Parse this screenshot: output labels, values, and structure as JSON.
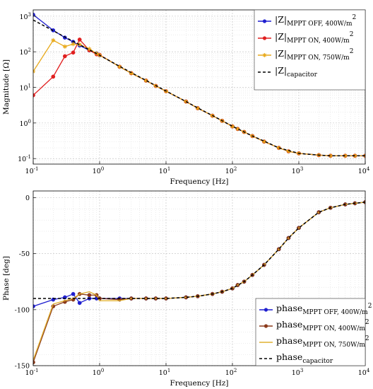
{
  "chart_data": [
    {
      "type": "line",
      "x_scale": "log",
      "y_scale": "log",
      "xlim": [
        0.1,
        10000
      ],
      "ylim": [
        0.07,
        1500
      ],
      "xlabel": "Frequency [Hz]",
      "ylabel": "Magnitude [Ω]",
      "grid": true,
      "legend_position": "top-right",
      "x_ticks": [
        0.1,
        1,
        10,
        100,
        1000,
        10000
      ],
      "x_tick_labels": [
        [
          "10",
          "-1"
        ],
        [
          "10",
          "0"
        ],
        [
          "10",
          "1"
        ],
        [
          "10",
          "2"
        ],
        [
          "10",
          "3"
        ],
        [
          "10",
          "4"
        ]
      ],
      "y_ticks": [
        0.1,
        1,
        10,
        100,
        1000
      ],
      "y_tick_labels": [
        [
          "10",
          "-1"
        ],
        [
          "10",
          "0"
        ],
        [
          "10",
          "1"
        ],
        [
          "10",
          "2"
        ],
        [
          "10",
          "3"
        ]
      ],
      "series": [
        {
          "name": "|Z|",
          "sub": "MPPT OFF, 400W/m",
          "sup": "2",
          "color": "#1f1fcf",
          "marker": "circle",
          "x": [
            0.1,
            0.2,
            0.3,
            0.4,
            0.5,
            0.7,
            0.9,
            1,
            2,
            3,
            5,
            7,
            10,
            20,
            30,
            50,
            70,
            100,
            120,
            150,
            200,
            300,
            500,
            700,
            1000,
            2000,
            3000,
            5000,
            7000,
            10000
          ],
          "y": [
            1100,
            400,
            250,
            190,
            150,
            110,
            90,
            80,
            38,
            25,
            15.5,
            11,
            7.8,
            4,
            2.6,
            1.6,
            1.15,
            0.8,
            0.68,
            0.56,
            0.43,
            0.3,
            0.2,
            0.16,
            0.14,
            0.125,
            0.12,
            0.12,
            0.12,
            0.12
          ]
        },
        {
          "name": "|Z|",
          "sub": "MPPT ON, 400W/m",
          "sup": "2",
          "color": "#e01f1f",
          "marker": "circle",
          "x": [
            0.1,
            0.2,
            0.3,
            0.4,
            0.5,
            0.7,
            0.9,
            1,
            2,
            3,
            5,
            7,
            10,
            20,
            30,
            50,
            70,
            100,
            120,
            150,
            200,
            300,
            500,
            700,
            1000,
            2000,
            3000,
            5000,
            7000,
            10000
          ],
          "y": [
            6,
            20,
            75,
            95,
            220,
            110,
            85,
            82,
            38,
            25,
            15.5,
            11,
            7.8,
            4,
            2.6,
            1.6,
            1.15,
            0.8,
            0.68,
            0.56,
            0.43,
            0.3,
            0.2,
            0.16,
            0.14,
            0.125,
            0.12,
            0.12,
            0.12,
            0.12
          ]
        },
        {
          "name": "|Z|",
          "sub": "MPPT ON, 750W/m",
          "sup": "2",
          "color": "#e8a91a",
          "marker": "star",
          "x": [
            0.1,
            0.2,
            0.3,
            0.4,
            0.5,
            0.7,
            0.9,
            1,
            2,
            3,
            5,
            7,
            10,
            20,
            30,
            50,
            70,
            100,
            120,
            150,
            200,
            300,
            500,
            700,
            1000,
            2000,
            3000,
            5000,
            7000,
            10000
          ],
          "y": [
            28,
            210,
            140,
            165,
            160,
            120,
            90,
            80,
            38,
            25,
            15.5,
            11,
            7.8,
            4,
            2.6,
            1.6,
            1.15,
            0.8,
            0.68,
            0.56,
            0.43,
            0.3,
            0.2,
            0.16,
            0.14,
            0.125,
            0.12,
            0.12,
            0.12,
            0.12
          ]
        },
        {
          "name": "|Z|",
          "sub": "capacitor",
          "sup": "",
          "color": "#000000",
          "marker": "none",
          "dash": true,
          "x": [
            0.1,
            0.2,
            0.3,
            0.5,
            1,
            2,
            3,
            5,
            10,
            20,
            30,
            50,
            100,
            200,
            300,
            500,
            1000,
            2000,
            3000,
            5000,
            10000
          ],
          "y": [
            780,
            390,
            260,
            158,
            80,
            39,
            26,
            15.7,
            7.9,
            4,
            2.65,
            1.62,
            0.81,
            0.43,
            0.31,
            0.2,
            0.14,
            0.125,
            0.12,
            0.12,
            0.12
          ]
        }
      ]
    },
    {
      "type": "line",
      "x_scale": "log",
      "y_scale": "linear",
      "xlim": [
        0.1,
        10000
      ],
      "ylim": [
        -150,
        6
      ],
      "xlabel": "Frequency [Hz]",
      "ylabel": "Phase [deg]",
      "grid": true,
      "legend_position": "bottom-right",
      "x_ticks": [
        0.1,
        1,
        10,
        100,
        1000,
        10000
      ],
      "x_tick_labels": [
        [
          "10",
          "-1"
        ],
        [
          "10",
          "0"
        ],
        [
          "10",
          "1"
        ],
        [
          "10",
          "2"
        ],
        [
          "10",
          "3"
        ],
        [
          "10",
          "4"
        ]
      ],
      "y_ticks": [
        -150,
        -100,
        -50,
        0
      ],
      "y_tick_labels": [
        "-150",
        "-100",
        "-50",
        "0"
      ],
      "series": [
        {
          "name": "phase",
          "sub": "MPPT OFF, 400W/m",
          "sup": "2",
          "color": "#1f1fcf",
          "marker": "circle",
          "x": [
            0.1,
            0.2,
            0.3,
            0.4,
            0.5,
            0.7,
            0.9,
            1,
            2,
            3,
            5,
            7,
            10,
            20,
            30,
            50,
            70,
            100,
            120,
            150,
            200,
            300,
            500,
            700,
            1000,
            2000,
            3000,
            5000,
            7000,
            10000
          ],
          "y": [
            -97,
            -91,
            -89,
            -86,
            -94,
            -90,
            -90,
            -90,
            -90,
            -90,
            -90,
            -90,
            -90,
            -89,
            -88,
            -86,
            -84,
            -81,
            -78,
            -75,
            -69,
            -60,
            -46,
            -36,
            -27,
            -13,
            -9,
            -6,
            -5,
            -4
          ]
        },
        {
          "name": "phase",
          "sub": "MPPT ON, 400W/m",
          "sup": "2",
          "color": "#8b3a1a",
          "marker": "circle",
          "x": [
            0.1,
            0.2,
            0.3,
            0.4,
            0.5,
            0.7,
            0.9,
            1,
            2,
            3,
            5,
            7,
            10,
            20,
            30,
            50,
            70,
            100,
            120,
            150,
            200,
            300,
            500,
            700,
            1000,
            2000,
            3000,
            5000,
            7000,
            10000
          ],
          "y": [
            -147,
            -97,
            -93,
            -91,
            -86,
            -87,
            -87,
            -90,
            -91,
            -90,
            -90,
            -90,
            -90,
            -89,
            -88,
            -86,
            -84,
            -81,
            -78,
            -75,
            -69,
            -60,
            -46,
            -36,
            -27,
            -13,
            -9,
            -6,
            -5,
            -4
          ]
        },
        {
          "name": "phase",
          "sub": "MPPT ON, 750W/m",
          "sup": "2",
          "color": "#e0b030",
          "marker": "none",
          "x": [
            0.1,
            0.2,
            0.3,
            0.4,
            0.5,
            0.7,
            0.9,
            1,
            2,
            3,
            5,
            7,
            10,
            20,
            30,
            50,
            70,
            100,
            120,
            150,
            200,
            300,
            500,
            700,
            1000,
            2000,
            3000,
            5000,
            7000,
            10000
          ],
          "y": [
            -145,
            -95,
            -92,
            -90,
            -86,
            -84,
            -87,
            -92,
            -92,
            -90,
            -90,
            -90,
            -90,
            -89,
            -88,
            -86,
            -84,
            -81,
            -78,
            -75,
            -69,
            -60,
            -46,
            -36,
            -27,
            -13,
            -9,
            -6,
            -5,
            -4
          ]
        },
        {
          "name": "phase",
          "sub": "capacitor",
          "sup": "",
          "color": "#000000",
          "marker": "none",
          "dash": true,
          "x": [
            0.1,
            0.3,
            1,
            3,
            10,
            20,
            30,
            50,
            70,
            100,
            150,
            200,
            300,
            500,
            700,
            1000,
            2000,
            3000,
            5000,
            7000,
            10000
          ],
          "y": [
            -90,
            -90,
            -90,
            -90,
            -90,
            -89,
            -88,
            -86,
            -84,
            -81,
            -75,
            -69,
            -60,
            -46,
            -36,
            -27,
            -13,
            -9,
            -6,
            -5,
            -4
          ]
        }
      ]
    }
  ]
}
